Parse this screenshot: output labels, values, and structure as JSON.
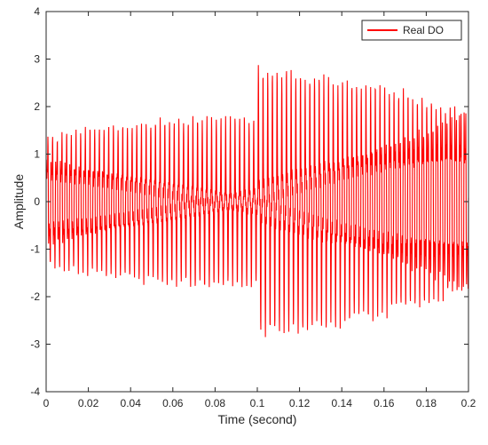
{
  "chart_data": {
    "type": "line",
    "title": "",
    "xlabel": "Time (second)",
    "ylabel": "Amplitude",
    "xlim": [
      0,
      0.2
    ],
    "ylim": [
      -4,
      4
    ],
    "xticks": [
      0,
      0.02,
      0.04,
      0.06,
      0.08,
      0.1,
      0.12,
      0.14,
      0.16,
      0.18,
      0.2
    ],
    "xtick_labels": [
      "0",
      "0.02",
      "0.04",
      "0.06",
      "0.08",
      "0.1",
      "0.12",
      "0.14",
      "0.16",
      "0.18",
      "0.2"
    ],
    "yticks": [
      -4,
      -3,
      -2,
      -1,
      0,
      1,
      2,
      3,
      4
    ],
    "ytick_labels": [
      "-4",
      "-3",
      "-2",
      "-1",
      "0",
      "1",
      "2",
      "3",
      "4"
    ],
    "grid": false,
    "legend_position": "top-right",
    "series": [
      {
        "name": "Real DO",
        "color": "#ff0000",
        "description": "dense oscillation; peaks about ±1.8 for t<0.1, about ±2.9 for t>0.1",
        "segments": [
          {
            "t_start": 0.0,
            "t_end": 0.1,
            "peak_max": 1.8,
            "peak_min": -1.8
          },
          {
            "t_start": 0.1,
            "t_end": 0.2,
            "peak_max": 2.9,
            "peak_min": -2.85
          }
        ]
      }
    ]
  }
}
